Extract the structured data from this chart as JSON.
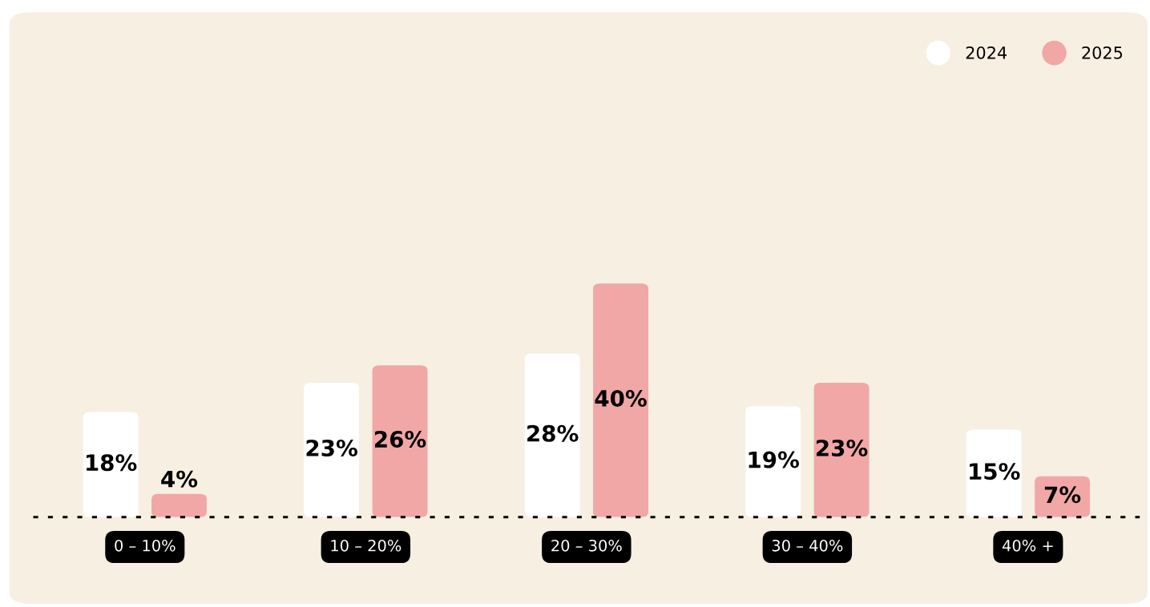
{
  "chart_data": {
    "type": "bar",
    "categories": [
      "0 – 10%",
      "10 – 20%",
      "20 – 30%",
      "30 – 40%",
      "40% +"
    ],
    "series": [
      {
        "name": "2024",
        "color": "#ffffff",
        "values": [
          18,
          23,
          28,
          19,
          15
        ],
        "value_labels": [
          "18%",
          "23%",
          "28%",
          "19%",
          "15%"
        ]
      },
      {
        "name": "2025",
        "color": "#f1a7a6",
        "values": [
          4,
          26,
          40,
          23,
          7
        ],
        "value_labels": [
          "4%",
          "26%",
          "40%",
          "23%",
          "7%"
        ]
      }
    ],
    "legend": "top right"
  }
}
